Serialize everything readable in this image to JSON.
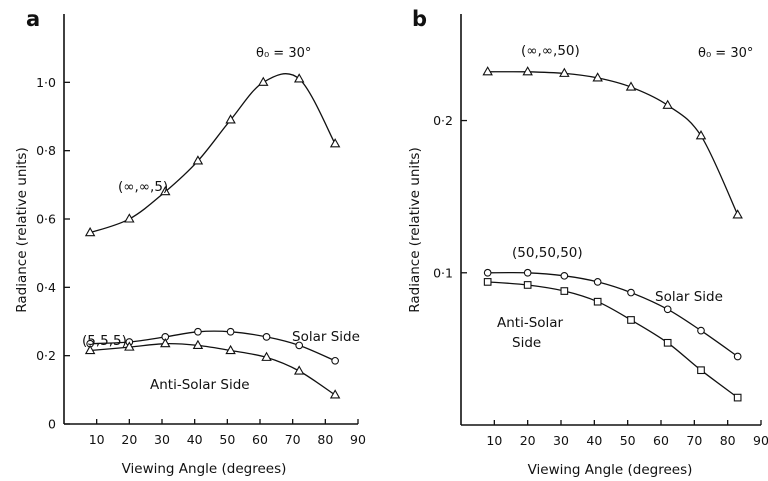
{
  "chart_data": [
    {
      "panel": "a",
      "type": "line",
      "xlabel": "Viewing Angle (degrees)",
      "ylabel": "Radiance (relative units)",
      "xlim": [
        0,
        90
      ],
      "ylim": [
        0,
        1.2
      ],
      "xticks": [
        10,
        20,
        30,
        40,
        50,
        60,
        70,
        80,
        90
      ],
      "yticks": [
        0,
        0.2,
        0.4,
        0.6,
        0.8,
        1.0
      ],
      "xtick_labels": [
        "10",
        "20",
        "30",
        "40",
        "50",
        "60",
        "70",
        "80",
        "90"
      ],
      "ytick_labels": [
        "0",
        "0·2",
        "0·4",
        "0·6",
        "0·8",
        "1·0"
      ],
      "annotation": "θ₀ = 30°",
      "series": [
        {
          "name": "(∞,∞,5)",
          "marker": "triangle",
          "x": [
            8,
            20,
            31,
            41,
            51,
            61,
            72,
            83
          ],
          "y": [
            0.56,
            0.6,
            0.68,
            0.77,
            0.89,
            1.0,
            1.01,
            0.82
          ]
        },
        {
          "name": "Solar Side",
          "marker": "circle",
          "x": [
            8,
            20,
            31,
            41,
            51,
            62,
            72,
            83
          ],
          "y": [
            0.235,
            0.24,
            0.255,
            0.27,
            0.27,
            0.255,
            0.23,
            0.185
          ]
        },
        {
          "name": "Anti-Solar Side",
          "marker": "triangle",
          "x": [
            8,
            20,
            31,
            41,
            51,
            62,
            72,
            83
          ],
          "y": [
            0.215,
            0.225,
            0.235,
            0.23,
            0.215,
            0.195,
            0.155,
            0.085
          ]
        }
      ],
      "labels": {
        "top_series": "(∞,∞,5)",
        "group": "(5,5,5)",
        "solar": "Solar Side",
        "anti_solar": "Anti-Solar Side"
      }
    },
    {
      "panel": "b",
      "type": "line",
      "xlabel": "Viewing Angle (degrees)",
      "ylabel": "Radiance (relative units)",
      "xlim": [
        0,
        90
      ],
      "ylim": [
        0,
        0.27
      ],
      "xticks": [
        10,
        20,
        30,
        40,
        50,
        60,
        70,
        80,
        90
      ],
      "yticks": [
        0.1,
        0.2
      ],
      "xtick_labels": [
        "10",
        "20",
        "30",
        "40",
        "50",
        "60",
        "70",
        "80",
        "90"
      ],
      "ytick_labels": [
        "0·1",
        "0·2"
      ],
      "annotation": "θ₀ = 30°",
      "series": [
        {
          "name": "(∞,∞,50)",
          "marker": "triangle",
          "x": [
            8,
            20,
            31,
            41,
            51,
            62,
            72,
            83
          ],
          "y": [
            0.232,
            0.232,
            0.231,
            0.228,
            0.222,
            0.21,
            0.19,
            0.138
          ]
        },
        {
          "name": "Solar Side",
          "marker": "circle",
          "x": [
            8,
            20,
            31,
            41,
            51,
            62,
            72,
            83
          ],
          "y": [
            0.1,
            0.1,
            0.098,
            0.094,
            0.087,
            0.076,
            0.062,
            0.045
          ]
        },
        {
          "name": "Anti-Solar Side",
          "marker": "square",
          "x": [
            8,
            20,
            31,
            41,
            51,
            62,
            72,
            83
          ],
          "y": [
            0.094,
            0.092,
            0.088,
            0.081,
            0.069,
            0.054,
            0.036,
            0.018
          ]
        }
      ],
      "labels": {
        "top_series": "(∞,∞,50)",
        "group": "(50,50,50)",
        "solar": "Solar Side",
        "anti_solar_1": "Anti-Solar",
        "anti_solar_2": "Side"
      }
    }
  ]
}
